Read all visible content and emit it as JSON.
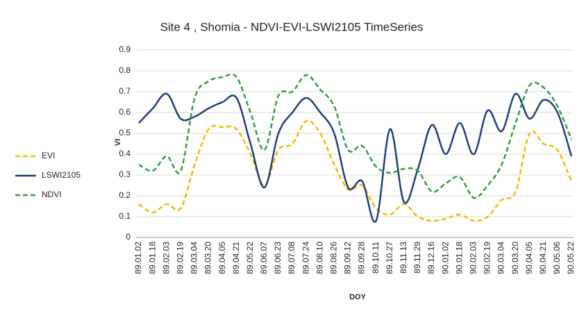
{
  "chart_data": {
    "type": "line",
    "title": "Site 4 , Shomia - NDVI-EVI-LSWI2105 TimeSeries",
    "x_label": "DOY",
    "y_label": "VI",
    "categories": [
      "89.01.02",
      "89.01.18",
      "89.02.03",
      "89.02.19",
      "89.03.04",
      "89.03.20",
      "89.04.05",
      "89.04.21",
      "89.05.22",
      "89.06.07",
      "89.06.23",
      "89.07.08",
      "89.07.24",
      "89.08.10",
      "89.08.26",
      "89.09.12",
      "89.09.28",
      "89.10.11",
      "89.10.27",
      "89.11.13",
      "89.11.29",
      "89.12.16",
      "90.01.02",
      "90.01.18",
      "90.02.03",
      "90.02.19",
      "90.03.04",
      "90.03.20",
      "90.04.05",
      "90.04.21",
      "90.05.06",
      "90.05.22"
    ],
    "series": [
      {
        "name": "EVI",
        "color": "#f5b800",
        "dash": true,
        "values": [
          0.16,
          0.12,
          0.16,
          0.14,
          0.35,
          0.52,
          0.53,
          0.52,
          0.4,
          0.25,
          0.42,
          0.45,
          0.56,
          0.5,
          0.35,
          0.23,
          0.25,
          0.14,
          0.11,
          0.16,
          0.1,
          0.08,
          0.09,
          0.11,
          0.08,
          0.1,
          0.18,
          0.22,
          0.5,
          0.45,
          0.42,
          0.27
        ]
      },
      {
        "name": "LSWI2105",
        "color": "#1f3d7a",
        "dash": false,
        "values": [
          0.55,
          0.62,
          0.69,
          0.57,
          0.58,
          0.62,
          0.65,
          0.67,
          0.45,
          0.24,
          0.5,
          0.6,
          0.67,
          0.6,
          0.5,
          0.24,
          0.27,
          0.08,
          0.52,
          0.17,
          0.33,
          0.54,
          0.4,
          0.55,
          0.4,
          0.61,
          0.51,
          0.69,
          0.57,
          0.66,
          0.6,
          0.39
        ]
      },
      {
        "name": "NDVI",
        "color": "#2ca040",
        "dash": true,
        "values": [
          0.35,
          0.32,
          0.39,
          0.32,
          0.67,
          0.75,
          0.77,
          0.77,
          0.6,
          0.42,
          0.68,
          0.7,
          0.78,
          0.71,
          0.63,
          0.42,
          0.44,
          0.34,
          0.31,
          0.33,
          0.32,
          0.22,
          0.26,
          0.29,
          0.19,
          0.25,
          0.35,
          0.55,
          0.73,
          0.72,
          0.63,
          0.47
        ]
      }
    ],
    "ylim": [
      0,
      0.9
    ],
    "yticks": [
      0,
      0.1,
      0.2,
      0.3,
      0.4,
      0.5,
      0.6,
      0.7,
      0.8,
      0.9
    ],
    "grid": true,
    "legend": "left"
  }
}
